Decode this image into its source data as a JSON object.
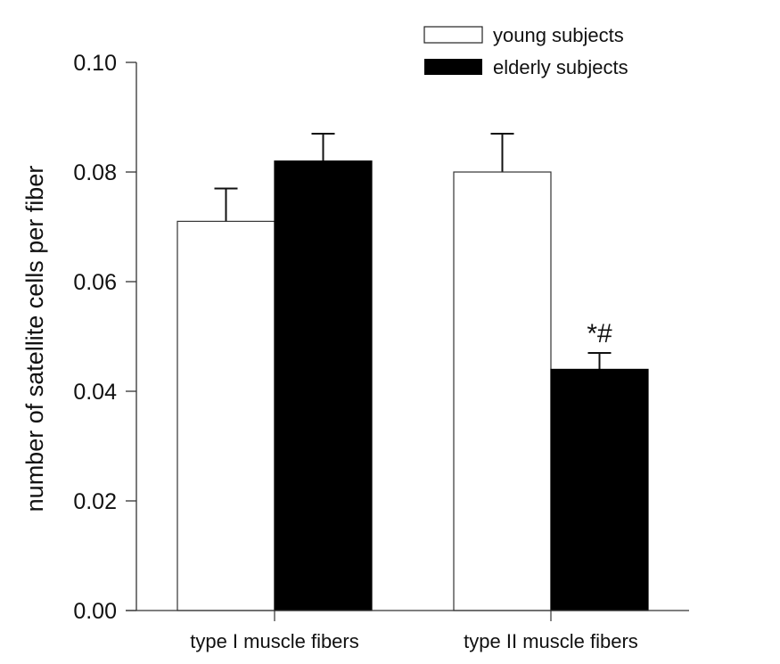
{
  "chart_data": {
    "type": "bar",
    "title": "",
    "xlabel": "",
    "ylabel": "number of satellite cells per fiber",
    "ylim": [
      0,
      0.1
    ],
    "yticks": [
      "0.00",
      "0.02",
      "0.04",
      "0.06",
      "0.08",
      "0.10"
    ],
    "ytick_values": [
      0,
      0.02,
      0.04,
      0.06,
      0.08,
      0.1
    ],
    "categories": [
      "type I muscle fibers",
      "type II muscle fibers"
    ],
    "series": [
      {
        "name": "young subjects",
        "color": "#ffffff",
        "values": [
          0.071,
          0.08
        ],
        "error": [
          0.006,
          0.007
        ]
      },
      {
        "name": "elderly subjects",
        "color": "#000000",
        "values": [
          0.082,
          0.044
        ],
        "error": [
          0.005,
          0.003
        ]
      }
    ],
    "annotations": [
      {
        "text": "*#",
        "category": 1,
        "series": 1
      }
    ],
    "legend_placement": "top-right",
    "grid": false
  }
}
